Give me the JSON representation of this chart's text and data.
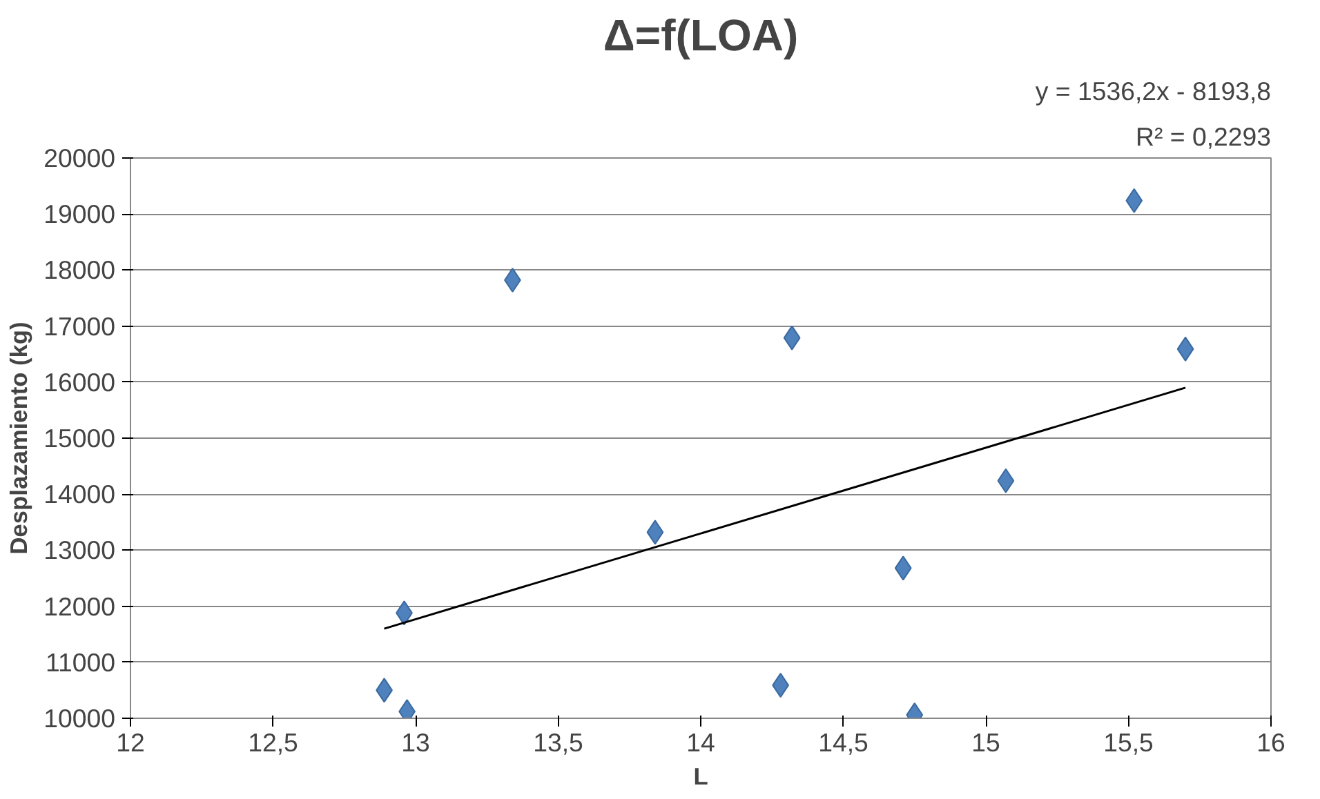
{
  "chart_data": {
    "type": "scatter",
    "title": "Δ=f(LOA)",
    "xlabel": "L",
    "ylabel": "Desplazamiento (kg)",
    "annotations": [
      "y = 1536,2x - 8193,8",
      "R² = 0,2293"
    ],
    "xlim": [
      12,
      16
    ],
    "xticks": [
      12,
      {
        "value": 12.5,
        "label": "12,5"
      },
      13,
      {
        "value": 13.5,
        "label": "13,5"
      },
      14,
      {
        "value": 14.5,
        "label": "14,5"
      },
      15,
      {
        "value": 15.5,
        "label": "15,5"
      },
      16
    ],
    "ylim": [
      10000,
      20000
    ],
    "yticks": [
      10000,
      11000,
      12000,
      13000,
      14000,
      15000,
      16000,
      17000,
      18000,
      19000,
      20000
    ],
    "grid": "y",
    "marker": "diamond",
    "series": [
      {
        "color": "#4f81bd",
        "x": [
          12.89,
          12.96,
          12.97,
          13.34,
          13.84,
          14.28,
          14.32,
          14.71,
          14.75,
          15.07,
          15.52,
          15.7
        ],
        "values": [
          10500,
          11880,
          10120,
          17820,
          13320,
          10590,
          16790,
          12680,
          10060,
          14240,
          19240,
          16590
        ]
      },
      {
        "type": "line",
        "color": "#000000",
        "line_style": "solid",
        "marker": "none",
        "x": [
          12.89,
          15.7
        ],
        "values": [
          11600,
          15900
        ]
      }
    ]
  }
}
